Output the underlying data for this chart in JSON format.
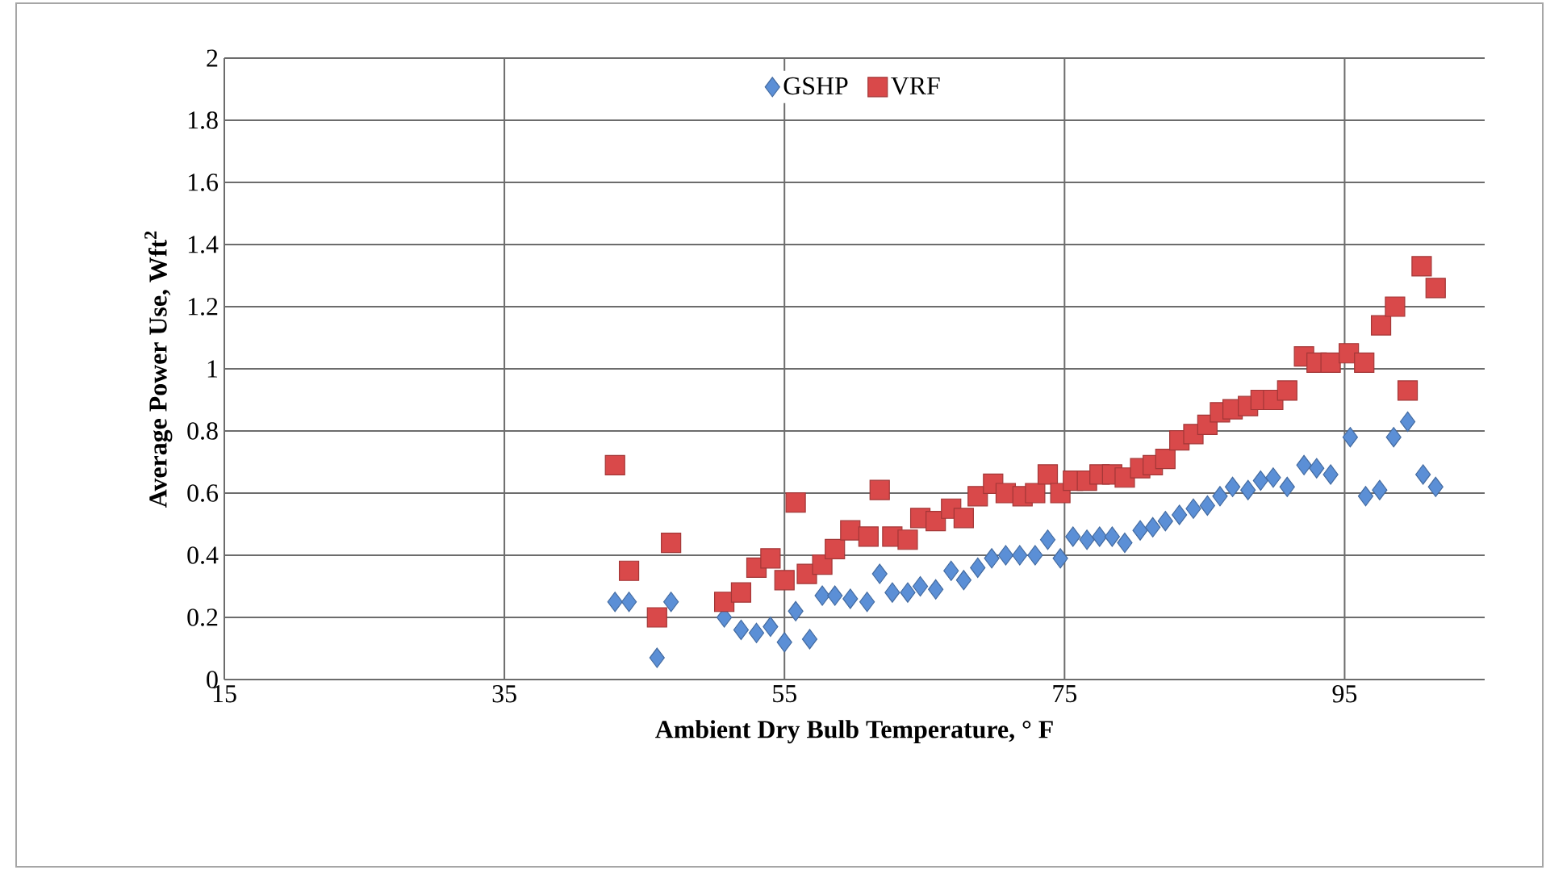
{
  "chart_data": {
    "type": "scatter",
    "xlabel": "Ambient Dry Bulb Temperature, ° F",
    "ylabel": "Average Power Use, Wft$^{2}$",
    "xlim": [
      15,
      105
    ],
    "xticks": [
      15,
      35,
      55,
      75,
      95
    ],
    "ylim": [
      0,
      2
    ],
    "yticks": [
      0,
      0.2,
      0.4,
      0.6,
      0.8,
      1,
      1.2,
      1.4,
      1.6,
      1.8,
      2
    ],
    "grid": true,
    "legend": "top",
    "series": [
      {
        "name": "GSHP",
        "color": "#5b8fd6",
        "marker": "diamond",
        "x": [
          42.9,
          43.9,
          45.9,
          46.9,
          50.7,
          51.9,
          53.0,
          54.0,
          55.0,
          55.8,
          56.8,
          57.7,
          58.6,
          59.7,
          60.9,
          61.8,
          62.7,
          63.8,
          64.7,
          65.8,
          66.9,
          67.8,
          68.8,
          69.8,
          70.8,
          71.8,
          72.9,
          73.8,
          74.7,
          75.6,
          76.6,
          77.5,
          78.4,
          79.3,
          80.4,
          81.3,
          82.2,
          83.2,
          84.2,
          85.2,
          86.1,
          87.0,
          88.1,
          89.0,
          89.9,
          90.9,
          92.1,
          93.0,
          94.0,
          95.4,
          96.5,
          97.5,
          98.5,
          99.5,
          100.6,
          101.5
        ],
        "values": [
          0.25,
          0.25,
          0.07,
          0.25,
          0.2,
          0.16,
          0.15,
          0.17,
          0.12,
          0.22,
          0.13,
          0.27,
          0.27,
          0.26,
          0.25,
          0.34,
          0.28,
          0.28,
          0.3,
          0.29,
          0.35,
          0.32,
          0.36,
          0.39,
          0.4,
          0.4,
          0.4,
          0.45,
          0.39,
          0.46,
          0.45,
          0.46,
          0.46,
          0.44,
          0.48,
          0.49,
          0.51,
          0.53,
          0.55,
          0.56,
          0.59,
          0.62,
          0.61,
          0.64,
          0.65,
          0.62,
          0.69,
          0.68,
          0.66,
          0.78,
          0.59,
          0.61,
          0.78,
          0.83,
          0.66,
          0.62
        ]
      },
      {
        "name": "VRF",
        "color": "#d9494a",
        "marker": "square",
        "x": [
          42.9,
          43.9,
          45.9,
          46.9,
          50.7,
          51.9,
          53.0,
          54.0,
          55.0,
          55.8,
          56.6,
          57.7,
          58.6,
          59.7,
          61.0,
          61.8,
          62.7,
          63.8,
          64.7,
          65.8,
          66.9,
          67.8,
          68.8,
          69.9,
          70.8,
          72.0,
          72.9,
          73.8,
          74.7,
          75.6,
          76.6,
          77.5,
          78.4,
          79.3,
          80.4,
          81.3,
          82.2,
          83.2,
          84.2,
          85.2,
          86.1,
          87.0,
          88.1,
          89.0,
          89.9,
          90.9,
          92.1,
          93.0,
          94.0,
          95.3,
          96.4,
          97.6,
          98.6,
          99.5,
          100.5,
          101.5
        ],
        "values": [
          0.69,
          0.35,
          0.2,
          0.44,
          0.25,
          0.28,
          0.36,
          0.39,
          0.32,
          0.57,
          0.34,
          0.37,
          0.42,
          0.48,
          0.46,
          0.61,
          0.46,
          0.45,
          0.52,
          0.51,
          0.55,
          0.52,
          0.59,
          0.63,
          0.6,
          0.59,
          0.6,
          0.66,
          0.6,
          0.64,
          0.64,
          0.66,
          0.66,
          0.65,
          0.68,
          0.69,
          0.71,
          0.77,
          0.79,
          0.82,
          0.86,
          0.87,
          0.88,
          0.9,
          0.9,
          0.93,
          1.04,
          1.02,
          1.02,
          1.05,
          1.02,
          1.14,
          1.2,
          0.93,
          1.33,
          1.26
        ]
      }
    ]
  }
}
